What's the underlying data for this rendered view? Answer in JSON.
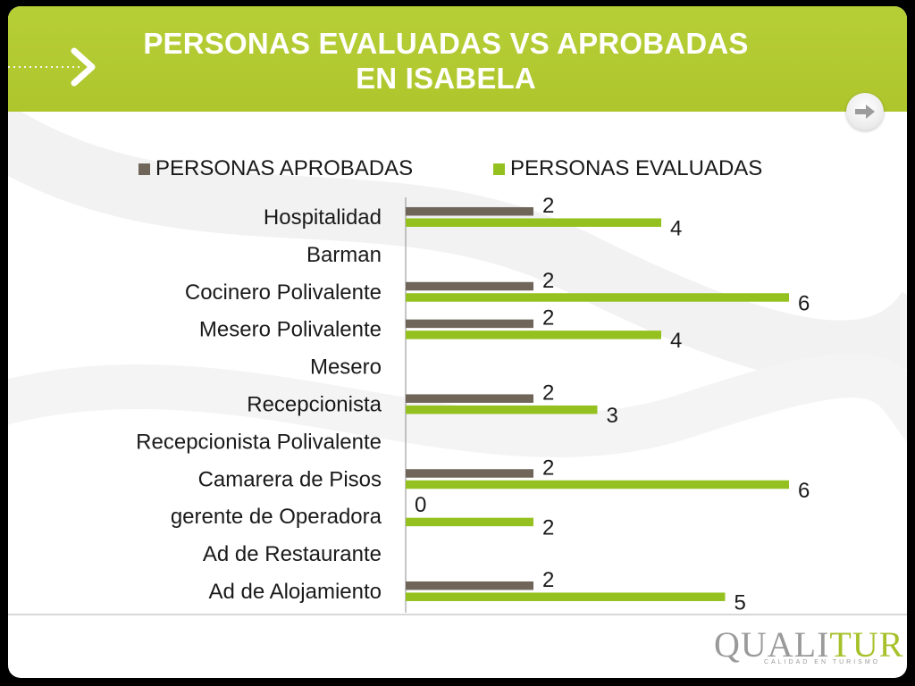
{
  "slide": {
    "title_line1": "PERSONAS EVALUADAS VS APROBADAS",
    "title_line2": "EN ISABELA",
    "logo_text_main": "QUALI",
    "logo_text_accent": "TUR",
    "logo_subtitle": "CALIDAD EN TURISMO"
  },
  "colors": {
    "header": "#aec52c",
    "aprobadas": "#6f6559",
    "evaluadas": "#94c11f"
  },
  "chart_data": {
    "type": "bar",
    "orientation": "horizontal",
    "categories": [
      "Hospitalidad",
      "Barman",
      "Cocinero Polivalente",
      "Mesero Polivalente",
      "Mesero",
      "Recepcionista",
      "Recepcionista Polivalente",
      "Camarera de Pisos",
      "gerente de Operadora",
      "Ad de Restaurante",
      "Ad de Alojamiento"
    ],
    "series": [
      {
        "name": "PERSONAS APROBADAS",
        "values": [
          2,
          null,
          2,
          2,
          null,
          2,
          null,
          2,
          0,
          null,
          2
        ]
      },
      {
        "name": "PERSONAS EVALUADAS",
        "values": [
          4,
          null,
          6,
          4,
          null,
          3,
          null,
          6,
          2,
          null,
          5
        ]
      }
    ],
    "legend": "top",
    "xlim": [
      0,
      6
    ],
    "grid": false
  }
}
